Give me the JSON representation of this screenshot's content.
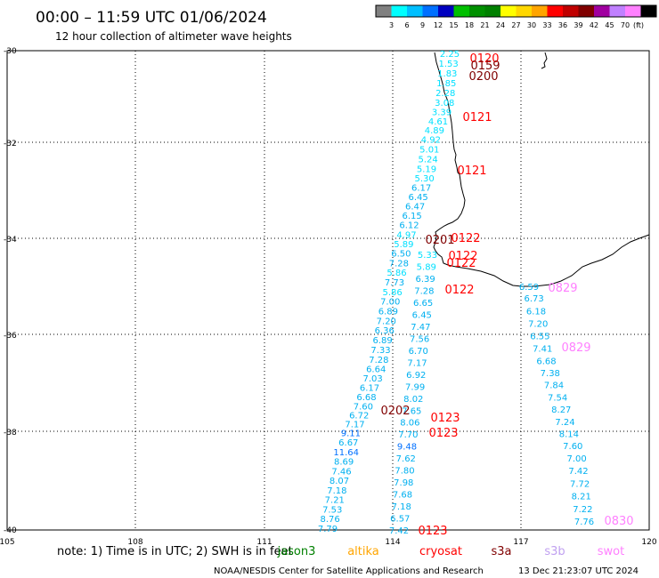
{
  "header": {
    "title": "00:00 – 11:59 UTC 01/06/2024",
    "subtitle": "12 hour collection of altimeter wave heights"
  },
  "colorbar": {
    "unit": "(ft)",
    "swatches": [
      {
        "color": "#808080",
        "label": ""
      },
      {
        "color": "#00ffff",
        "label": "3"
      },
      {
        "color": "#00bfff",
        "label": "6"
      },
      {
        "color": "#0070ff",
        "label": "9"
      },
      {
        "color": "#0000c0",
        "label": "12"
      },
      {
        "color": "#00c000",
        "label": "15"
      },
      {
        "color": "#009000",
        "label": "18"
      },
      {
        "color": "#008000",
        "label": "21"
      },
      {
        "color": "#ffff00",
        "label": "24"
      },
      {
        "color": "#ffd700",
        "label": "27"
      },
      {
        "color": "#ffa500",
        "label": "30"
      },
      {
        "color": "#ff0000",
        "label": "33"
      },
      {
        "color": "#c00000",
        "label": "36"
      },
      {
        "color": "#800000",
        "label": "39"
      },
      {
        "color": "#a000a0",
        "label": "42"
      },
      {
        "color": "#c080ff",
        "label": "45"
      },
      {
        "color": "#ff80ff",
        "label": "70"
      },
      {
        "color": "#000000",
        "label": ""
      }
    ]
  },
  "map": {
    "lon_range": [
      105,
      120
    ],
    "lat_range": [
      -40,
      -30
    ],
    "lon_ticks": [
      "105",
      "108",
      "111",
      "114",
      "117",
      "120"
    ],
    "lat_ticks": [
      "-30",
      "-32",
      "-34",
      "-36",
      "-38",
      "-40"
    ]
  },
  "tracks": {
    "left_swh": [
      "2.25",
      "1.53",
      "1.83",
      "1.85",
      "2.28",
      "3.08",
      "3.39",
      "4.61",
      "4.89",
      "4.92",
      "5.01",
      "5.24",
      "5.19",
      "5.30",
      "6.17",
      "6.45",
      "6.47",
      "6.15",
      "6.12",
      "4.97",
      "5.89",
      "6.50",
      "7.28",
      "5.86",
      "7.73",
      "5.86",
      "7.00",
      "6.89",
      "7.20",
      "6.36",
      "6.89",
      "7.33",
      "7.28",
      "6.64",
      "7.03",
      "6.17",
      "6.68",
      "7.60",
      "6.72",
      "7.17",
      "9.11",
      "6.67",
      "11.64",
      "8.69",
      "7.46",
      "8.07",
      "7.18",
      "7.21",
      "7.53",
      "8.76",
      "7.79"
    ],
    "right_swh": [
      "5.33",
      "5.89",
      "6.39",
      "7.28",
      "6.65",
      "6.45",
      "7.47",
      "7.56",
      "6.70",
      "7.17",
      "6.92",
      "7.99",
      "8.02",
      "7.65",
      "8.06",
      "7.70",
      "9.48",
      "7.62",
      "7.80",
      "7.98",
      "7.68",
      "7.18",
      "6.57",
      "7.42"
    ],
    "east_swh": [
      "6.59",
      "6.73",
      "6.18",
      "7.20",
      "6.55",
      "7.41",
      "6.68",
      "7.38",
      "7.84",
      "7.54",
      "8.27",
      "7.24",
      "8.14",
      "7.60",
      "7.00",
      "7.42",
      "7.72",
      "8.21",
      "7.22",
      "7.76"
    ],
    "time_labels": [
      {
        "text": "0120",
        "series": "cryosat"
      },
      {
        "text": "0159",
        "series": "s3a"
      },
      {
        "text": "0200",
        "series": "s3a"
      },
      {
        "text": "0121",
        "series": "cryosat"
      },
      {
        "text": "0121",
        "series": "cryosat"
      },
      {
        "text": "0201",
        "series": "s3a"
      },
      {
        "text": "0122",
        "series": "cryosat"
      },
      {
        "text": "0122",
        "series": "cryosat"
      },
      {
        "text": "0122",
        "series": "cryosat"
      },
      {
        "text": "0122",
        "series": "cryosat"
      },
      {
        "text": "0202",
        "series": "s3a"
      },
      {
        "text": "0123",
        "series": "cryosat"
      },
      {
        "text": "0123",
        "series": "cryosat"
      },
      {
        "text": "0123",
        "series": "cryosat"
      },
      {
        "text": "0829",
        "series": "swot"
      },
      {
        "text": "0829",
        "series": "swot"
      },
      {
        "text": "0830",
        "series": "swot"
      }
    ]
  },
  "legend": {
    "note": "note:  1) Time is in UTC; 2) SWH is in feet",
    "items": [
      {
        "name": "jason3",
        "color": "#008000"
      },
      {
        "name": "altika",
        "color": "#ffa500"
      },
      {
        "name": "cryosat",
        "color": "#ff0000"
      },
      {
        "name": "s3a",
        "color": "#800000"
      },
      {
        "name": "s3b",
        "color": "#c0a0f0"
      },
      {
        "name": "swot",
        "color": "#ff80ff"
      }
    ]
  },
  "footer": {
    "credit": "NOAA/NESDIS Center for Satellite Applications and Research",
    "timestamp": "13 Dec 21:23:07 UTC 2024"
  }
}
